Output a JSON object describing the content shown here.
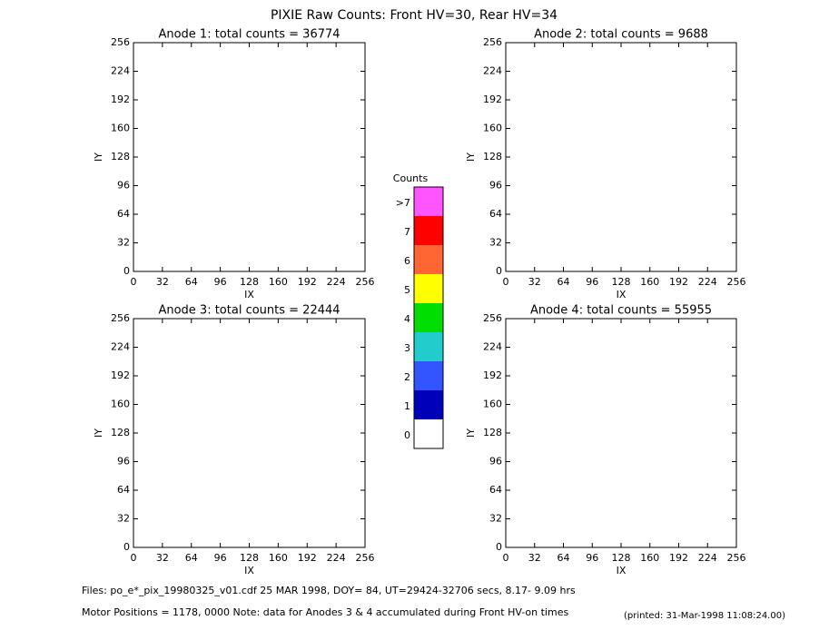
{
  "title": "PIXIE Raw Counts:  Front HV=30, Rear HV=34",
  "chart_data": [
    {
      "type": "heatmap",
      "title": "Anode 1: total counts = 36774",
      "xlabel": "IX",
      "ylabel": "IY",
      "xlim": [
        0,
        256
      ],
      "ylim": [
        0,
        256
      ],
      "xticks": [
        0,
        32,
        64,
        96,
        128,
        160,
        192,
        224,
        256
      ],
      "yticks": [
        0,
        32,
        64,
        96,
        128,
        160,
        192,
        224,
        256
      ]
    },
    {
      "type": "heatmap",
      "title": "Anode 2: total counts = 9688",
      "xlabel": "IX",
      "ylabel": "IY",
      "xlim": [
        0,
        256
      ],
      "ylim": [
        0,
        256
      ],
      "xticks": [
        0,
        32,
        64,
        96,
        128,
        160,
        192,
        224,
        256
      ],
      "yticks": [
        0,
        32,
        64,
        96,
        128,
        160,
        192,
        224,
        256
      ]
    },
    {
      "type": "heatmap",
      "title": "Anode 3: total counts = 22444",
      "xlabel": "IX",
      "ylabel": "IY",
      "xlim": [
        0,
        256
      ],
      "ylim": [
        0,
        256
      ],
      "xticks": [
        0,
        32,
        64,
        96,
        128,
        160,
        192,
        224,
        256
      ],
      "yticks": [
        0,
        32,
        64,
        96,
        128,
        160,
        192,
        224,
        256
      ]
    },
    {
      "type": "heatmap",
      "title": "Anode 4: total counts = 55955",
      "xlabel": "IX",
      "ylabel": "IY",
      "xlim": [
        0,
        256
      ],
      "ylim": [
        0,
        256
      ],
      "xticks": [
        0,
        32,
        64,
        96,
        128,
        160,
        192,
        224,
        256
      ],
      "yticks": [
        0,
        32,
        64,
        96,
        128,
        160,
        192,
        224,
        256
      ]
    }
  ],
  "colorbar": {
    "title": "Counts",
    "labels": [
      ">7",
      "7",
      "6",
      "5",
      "4",
      "3",
      "2",
      "1",
      "0"
    ],
    "colors": [
      "#ff55ff",
      "#ff0000",
      "#ff6633",
      "#ffff00",
      "#00dd00",
      "#22cccc",
      "#3355ff",
      "#0000bb",
      "#ffffff"
    ]
  },
  "footer": {
    "files": "Files: po_e*_pix_19980325_v01.cdf    25 MAR 1998, DOY= 84, UT=29424-32706 secs,  8.17- 9.09 hrs",
    "motor": "Motor Positions = 1178, 0000   Note: data for Anodes 3 & 4 accumulated during Front HV-on times",
    "printed": "(printed: 31-Mar-1998 11:08:24.00)"
  }
}
